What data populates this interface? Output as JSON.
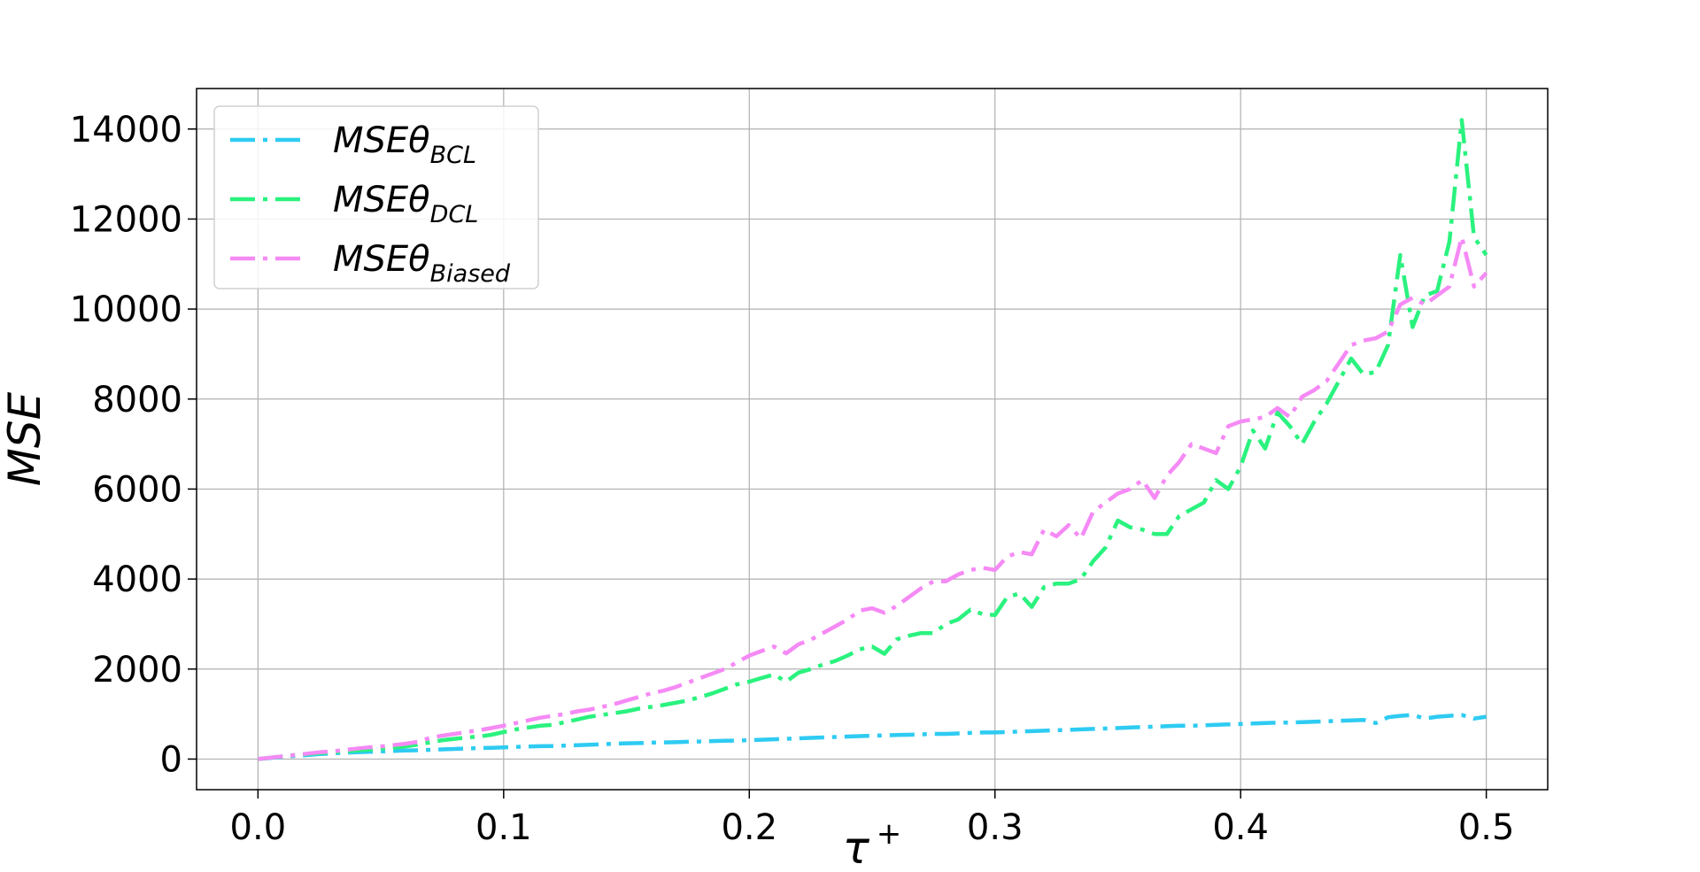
{
  "chart_data": {
    "type": "line",
    "title": "",
    "xlabel": "τ",
    "xlabel_superscript": "+",
    "ylabel": "MSE",
    "xlim": [
      -0.025,
      0.525
    ],
    "ylim": [
      -680,
      14900
    ],
    "x_ticks": [
      0.0,
      0.1,
      0.2,
      0.3,
      0.4,
      0.5
    ],
    "x_tick_labels": [
      "0.0",
      "0.1",
      "0.2",
      "0.3",
      "0.4",
      "0.5"
    ],
    "y_ticks": [
      0,
      2000,
      4000,
      6000,
      8000,
      10000,
      12000,
      14000
    ],
    "y_tick_labels": [
      "0",
      "2000",
      "4000",
      "6000",
      "8000",
      "10000",
      "12000",
      "14000"
    ],
    "grid": true,
    "legend_position": "top-left",
    "x": [
      0.0,
      0.005,
      0.01,
      0.015,
      0.02,
      0.025,
      0.03,
      0.035,
      0.04,
      0.045,
      0.05,
      0.055,
      0.06,
      0.065,
      0.07,
      0.075,
      0.08,
      0.085,
      0.09,
      0.095,
      0.1,
      0.105,
      0.11,
      0.115,
      0.12,
      0.125,
      0.13,
      0.135,
      0.14,
      0.145,
      0.15,
      0.155,
      0.16,
      0.165,
      0.17,
      0.175,
      0.18,
      0.185,
      0.19,
      0.195,
      0.2,
      0.205,
      0.21,
      0.215,
      0.22,
      0.225,
      0.23,
      0.235,
      0.24,
      0.245,
      0.25,
      0.255,
      0.26,
      0.265,
      0.27,
      0.275,
      0.28,
      0.285,
      0.29,
      0.295,
      0.3,
      0.305,
      0.31,
      0.315,
      0.32,
      0.325,
      0.33,
      0.335,
      0.34,
      0.345,
      0.35,
      0.355,
      0.36,
      0.365,
      0.37,
      0.375,
      0.38,
      0.385,
      0.39,
      0.395,
      0.4,
      0.405,
      0.41,
      0.415,
      0.42,
      0.425,
      0.43,
      0.435,
      0.44,
      0.445,
      0.45,
      0.455,
      0.46,
      0.465,
      0.47,
      0.475,
      0.48,
      0.485,
      0.49,
      0.495,
      0.5
    ],
    "series": [
      {
        "name_base": "MSEθ",
        "name_sub": "BCL",
        "color": "#2ecbf2",
        "values": [
          0,
          25,
          50,
          70,
          90,
          110,
          125,
          140,
          150,
          160,
          170,
          180,
          190,
          195,
          205,
          215,
          225,
          235,
          245,
          250,
          260,
          270,
          280,
          285,
          290,
          300,
          310,
          320,
          330,
          340,
          350,
          355,
          365,
          370,
          375,
          385,
          390,
          400,
          405,
          410,
          420,
          430,
          440,
          450,
          460,
          470,
          480,
          490,
          500,
          510,
          520,
          525,
          535,
          540,
          550,
          560,
          560,
          570,
          580,
          590,
          590,
          600,
          610,
          620,
          630,
          640,
          650,
          660,
          670,
          680,
          690,
          700,
          710,
          720,
          730,
          740,
          740,
          750,
          760,
          770,
          780,
          790,
          800,
          810,
          810,
          820,
          830,
          840,
          850,
          860,
          870,
          800,
          930,
          960,
          980,
          900,
          940,
          960,
          980,
          900,
          940
        ]
      },
      {
        "name_base": "MSEθ",
        "name_sub": "DCL",
        "color": "#2af27e",
        "values": [
          0,
          30,
          60,
          90,
          110,
          130,
          150,
          170,
          190,
          210,
          230,
          250,
          280,
          320,
          370,
          420,
          450,
          480,
          500,
          540,
          600,
          660,
          700,
          740,
          760,
          820,
          880,
          940,
          980,
          1020,
          1060,
          1120,
          1160,
          1200,
          1250,
          1300,
          1380,
          1460,
          1560,
          1660,
          1720,
          1800,
          1880,
          1720,
          1920,
          2000,
          2100,
          2180,
          2300,
          2440,
          2500,
          2340,
          2660,
          2740,
          2800,
          2800,
          3000,
          3100,
          3320,
          3220,
          3200,
          3600,
          3680,
          3380,
          3820,
          3900,
          3900,
          4000,
          4400,
          4700,
          5300,
          5150,
          5100,
          5000,
          5000,
          5400,
          5550,
          5700,
          6200,
          6000,
          6500,
          7300,
          6900,
          7700,
          7400,
          7000,
          7500,
          7900,
          8400,
          8900,
          8550,
          8600,
          9200,
          11200,
          9600,
          10300,
          10400,
          11500,
          14200,
          11600,
          11200
        ]
      },
      {
        "name_base": "MSEθ",
        "name_sub": "Biased",
        "color": "#f58af5",
        "values": [
          0,
          30,
          60,
          90,
          120,
          150,
          170,
          200,
          230,
          260,
          280,
          310,
          340,
          380,
          470,
          520,
          560,
          600,
          640,
          690,
          740,
          800,
          860,
          920,
          960,
          1000,
          1060,
          1100,
          1160,
          1220,
          1300,
          1380,
          1460,
          1520,
          1600,
          1700,
          1800,
          1900,
          2000,
          2150,
          2300,
          2400,
          2500,
          2350,
          2550,
          2650,
          2800,
          2950,
          3100,
          3300,
          3350,
          3250,
          3400,
          3600,
          3800,
          3950,
          3950,
          4100,
          4200,
          4250,
          4200,
          4500,
          4600,
          4550,
          5100,
          4950,
          5200,
          4900,
          5500,
          5700,
          5900,
          6000,
          6200,
          5800,
          6300,
          6600,
          7000,
          6900,
          6800,
          7400,
          7500,
          7550,
          7600,
          7800,
          7600,
          8050,
          8200,
          8400,
          8800,
          9200,
          9300,
          9350,
          9500,
          10100,
          10250,
          10100,
          10300,
          10500,
          11600,
          10500,
          10800
        ]
      }
    ]
  }
}
